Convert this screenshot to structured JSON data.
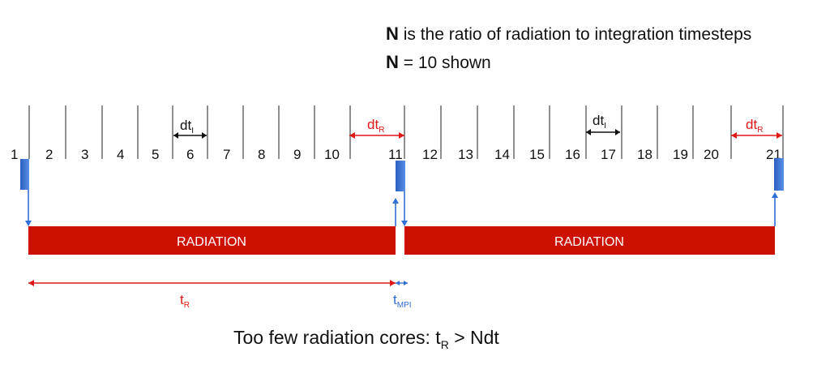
{
  "header": {
    "line1_bold": "N",
    "line1_rest": " is the ratio of radiation to integration timesteps",
    "line2_bold": "N",
    "line2_rest": " = 10 shown"
  },
  "timesteps": [
    "1",
    "2",
    "3",
    "4",
    "5",
    "6",
    "7",
    "8",
    "9",
    "10",
    "11",
    "12",
    "13",
    "14",
    "15",
    "16",
    "17",
    "18",
    "19",
    "20",
    "21"
  ],
  "intervals": {
    "dt_integration": {
      "base": "dt",
      "sub": "I"
    },
    "dt_radiation": {
      "base": "dt",
      "sub": "R"
    }
  },
  "bars": [
    {
      "label": "RADIATION"
    },
    {
      "label": "RADIATION"
    }
  ],
  "timing": {
    "t_r": {
      "base": "t",
      "sub": "R"
    },
    "t_mpi": {
      "base": "t",
      "sub": "MPI"
    }
  },
  "caption": {
    "pre": "Too few radiation cores: t",
    "sub": "R",
    "post": " > Ndt"
  },
  "colors": {
    "red": "#cc1100",
    "arrow_red": "#e01818",
    "blue": "#2f6fd6",
    "block_blue": "#2f66c8",
    "tick": "#555555",
    "text": "#111111"
  }
}
